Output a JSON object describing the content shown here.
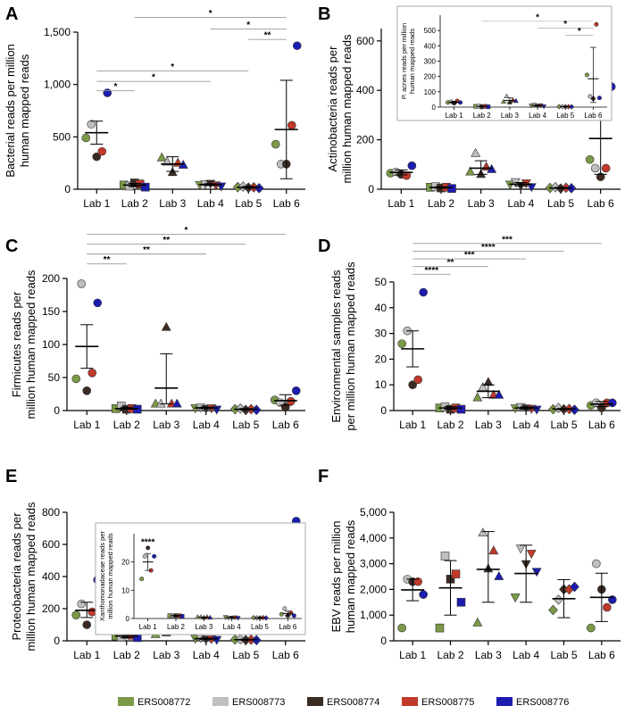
{
  "colors": {
    "ERS008772": "#7b9a47",
    "ERS008773": "#bfbfbf",
    "ERS008774": "#3a2a22",
    "ERS008775": "#c0392b",
    "ERS008776": "#1c1cb0"
  },
  "marker_shapes": [
    "circle",
    "square",
    "triangle-up",
    "triangle-down",
    "diamond",
    "circle"
  ],
  "legend": {
    "items": [
      {
        "name": "ERS008772",
        "color": "#7b9a47"
      },
      {
        "name": "ERS008773",
        "color": "#bfbfbf"
      },
      {
        "name": "ERS008774",
        "color": "#3a2a22"
      },
      {
        "name": "ERS008775",
        "color": "#c0392b"
      },
      {
        "name": "ERS008776",
        "color": "#1c1cb0"
      }
    ]
  },
  "chart_data": [
    {
      "type": "scatter",
      "panel": "A",
      "ylabel": [
        "Bacterial reads per million",
        "human mapped reads"
      ],
      "categories": [
        "Lab 1",
        "Lab 2",
        "Lab 3",
        "Lab 4",
        "Lab 5",
        "Lab 6"
      ],
      "ylim": [
        0,
        1500
      ],
      "yticks": [
        0,
        500,
        1000,
        1500
      ],
      "yticklabels": [
        "0",
        "500",
        "1,000",
        "1,500"
      ],
      "series": [
        {
          "color": "ERS008772",
          "values": [
            490,
            40,
            300,
            45,
            20,
            430
          ]
        },
        {
          "color": "ERS008773",
          "values": [
            620,
            30,
            260,
            50,
            25,
            240
          ]
        },
        {
          "color": "ERS008774",
          "values": [
            310,
            60,
            160,
            55,
            15,
            240
          ]
        },
        {
          "color": "ERS008775",
          "values": [
            360,
            50,
            250,
            40,
            18,
            610
          ]
        },
        {
          "color": "ERS008776",
          "values": [
            920,
            20,
            230,
            30,
            10,
            1370
          ]
        }
      ],
      "mean": [
        540,
        40,
        240,
        44,
        18,
        570
      ],
      "sem_low": [
        430,
        25,
        170,
        35,
        10,
        100
      ],
      "sem_high": [
        650,
        55,
        310,
        53,
        26,
        1040
      ],
      "sig_bars": [
        {
          "from": 0,
          "to": 1,
          "y": 940,
          "label": "*"
        },
        {
          "from": 0,
          "to": 3,
          "y": 1030,
          "label": "*"
        },
        {
          "from": 0,
          "to": 4,
          "y": 1130,
          "label": "*"
        },
        {
          "from": 1,
          "to": 5,
          "y": 1640,
          "label": "*"
        },
        {
          "from": 3,
          "to": 5,
          "y": 1530,
          "label": "*"
        },
        {
          "from": 4,
          "to": 5,
          "y": 1430,
          "label": "**"
        }
      ]
    },
    {
      "type": "scatter",
      "panel": "B",
      "ylabel": [
        "Actinobacteria reads per",
        "million human mapped reads"
      ],
      "categories": [
        "Lab 1",
        "Lab 2",
        "Lab 3",
        "Lab 4",
        "Lab 5",
        "Lab 6"
      ],
      "ylim": [
        0,
        650
      ],
      "yticks": [
        0,
        200,
        400,
        600
      ],
      "yticklabels": [
        "0",
        "200",
        "400",
        "600"
      ],
      "series": [
        {
          "color": "ERS008772",
          "values": [
            65,
            8,
            70,
            20,
            5,
            120
          ]
        },
        {
          "color": "ERS008773",
          "values": [
            70,
            10,
            145,
            30,
            8,
            85
          ]
        },
        {
          "color": "ERS008774",
          "values": [
            60,
            5,
            60,
            15,
            3,
            50
          ]
        },
        {
          "color": "ERS008775",
          "values": [
            55,
            8,
            90,
            25,
            6,
            85
          ]
        },
        {
          "color": "ERS008776",
          "values": [
            95,
            3,
            80,
            10,
            4,
            415
          ]
        }
      ],
      "mean": [
        68,
        7,
        85,
        20,
        5,
        205
      ],
      "sem_low": [
        58,
        4,
        60,
        13,
        3,
        60
      ],
      "sem_high": [
        78,
        10,
        115,
        27,
        7,
        340
      ],
      "inset": {
        "ylabel": [
          "P. acnes reads per million",
          "human mapped reads"
        ],
        "categories": [
          "Lab 1",
          "Lab 2",
          "Lab 3",
          "Lab 4",
          "Lab 5",
          "Lab 6"
        ],
        "ylim": [
          0,
          600
        ],
        "yticks": [
          0,
          100,
          200,
          300,
          400,
          500
        ],
        "yticklabels": [
          "0",
          "100",
          "200",
          "300",
          "400",
          "500"
        ],
        "series": [
          {
            "color": "ERS008772",
            "values": [
              30,
              5,
              35,
              10,
              3,
              210
            ]
          },
          {
            "color": "ERS008773",
            "values": [
              35,
              6,
              70,
              15,
              4,
              70
            ]
          },
          {
            "color": "ERS008774",
            "values": [
              25,
              3,
              30,
              8,
              2,
              55
            ]
          },
          {
            "color": "ERS008775",
            "values": [
              40,
              5,
              45,
              12,
              3,
              540
            ]
          },
          {
            "color": "ERS008776",
            "values": [
              30,
              2,
              40,
              5,
              2,
              60
            ]
          }
        ],
        "mean": [
          32,
          4,
          44,
          10,
          3,
          185
        ],
        "sem_low": [
          26,
          3,
          30,
          6,
          2,
          30
        ],
        "sem_high": [
          38,
          6,
          60,
          14,
          4,
          390
        ],
        "sig_bars": [
          {
            "from": 1,
            "to": 5,
            "y": 560,
            "label": "*"
          },
          {
            "from": 3,
            "to": 5,
            "y": 515,
            "label": "*"
          },
          {
            "from": 4,
            "to": 5,
            "y": 470,
            "label": "*"
          }
        ]
      }
    },
    {
      "type": "scatter",
      "panel": "C",
      "ylabel": [
        "Firmicutes reads per",
        "million human mapped reads"
      ],
      "categories": [
        "Lab 1",
        "Lab 2",
        "Lab 3",
        "Lab 4",
        "Lab 5",
        "Lab 6"
      ],
      "ylim": [
        0,
        200
      ],
      "yticks": [
        0,
        50,
        100,
        150,
        200
      ],
      "yticklabels": [
        "0",
        "50",
        "100",
        "150",
        "200"
      ],
      "series": [
        {
          "color": "ERS008772",
          "values": [
            48,
            3,
            10,
            4,
            2,
            16
          ]
        },
        {
          "color": "ERS008773",
          "values": [
            192,
            7,
            10,
            5,
            3,
            12
          ]
        },
        {
          "color": "ERS008774",
          "values": [
            30,
            2,
            126,
            3,
            1,
            5
          ]
        },
        {
          "color": "ERS008775",
          "values": [
            57,
            3,
            10,
            4,
            2,
            14
          ]
        },
        {
          "color": "ERS008776",
          "values": [
            163,
            2,
            10,
            2,
            1,
            30
          ]
        }
      ],
      "mean": [
        97,
        3,
        34,
        4,
        2,
        15
      ],
      "sem_low": [
        64,
        2,
        10,
        3,
        1,
        8
      ],
      "sem_high": [
        130,
        5,
        86,
        5,
        3,
        24
      ],
      "sig_bars": [
        {
          "from": 0,
          "to": 1,
          "y": 222,
          "label": "**"
        },
        {
          "from": 0,
          "to": 3,
          "y": 237,
          "label": "**"
        },
        {
          "from": 0,
          "to": 4,
          "y": 252,
          "label": "**"
        },
        {
          "from": 0,
          "to": 5,
          "y": 267,
          "label": "*"
        }
      ]
    },
    {
      "type": "scatter",
      "panel": "D",
      "ylabel": [
        "Environmental samples reads",
        "per million human mapped reads"
      ],
      "categories": [
        "Lab 1",
        "Lab 2",
        "Lab 3",
        "Lab 4",
        "Lab 5",
        "Lab 6"
      ],
      "ylim": [
        0,
        50
      ],
      "yticks": [
        0,
        10,
        20,
        30,
        40,
        50
      ],
      "yticklabels": [
        "0",
        "10",
        "20",
        "30",
        "40",
        "50"
      ],
      "series": [
        {
          "color": "ERS008772",
          "values": [
            26,
            1,
            5,
            1,
            0.5,
            2
          ]
        },
        {
          "color": "ERS008773",
          "values": [
            31,
            1.5,
            9,
            1.5,
            1,
            3
          ]
        },
        {
          "color": "ERS008774",
          "values": [
            10,
            0.5,
            11,
            1,
            0.5,
            1
          ]
        },
        {
          "color": "ERS008775",
          "values": [
            12,
            1,
            6,
            0.8,
            0.6,
            3
          ]
        },
        {
          "color": "ERS008776",
          "values": [
            46,
            0.5,
            6,
            0.5,
            0.3,
            3
          ]
        }
      ],
      "mean": [
        24,
        1,
        7.5,
        1,
        0.6,
        2.5
      ],
      "sem_low": [
        17,
        0.5,
        5,
        0.6,
        0.4,
        1.5
      ],
      "sem_high": [
        31,
        1.5,
        10,
        1.4,
        0.8,
        3.5
      ],
      "sig_bars": [
        {
          "from": 0,
          "to": 1,
          "y": 53,
          "label": "****"
        },
        {
          "from": 0,
          "to": 2,
          "y": 56,
          "label": "**"
        },
        {
          "from": 0,
          "to": 3,
          "y": 59,
          "label": "***"
        },
        {
          "from": 0,
          "to": 4,
          "y": 62,
          "label": "****"
        },
        {
          "from": 0,
          "to": 5,
          "y": 65,
          "label": "***"
        }
      ]
    },
    {
      "type": "scatter",
      "panel": "E",
      "ylabel": [
        "Proteobacteria reads per",
        "million human mapped reads"
      ],
      "categories": [
        "Lab 1",
        "Lab 2",
        "Lab 3",
        "Lab 4",
        "Lab 5",
        "Lab 6"
      ],
      "ylim": [
        0,
        800
      ],
      "yticks": [
        0,
        200,
        400,
        600,
        800
      ],
      "yticklabels": [
        "0",
        "200",
        "400",
        "600",
        "800"
      ],
      "series": [
        {
          "color": "ERS008772",
          "values": [
            160,
            30,
            40,
            15,
            8,
            180
          ]
        },
        {
          "color": "ERS008773",
          "values": [
            230,
            25,
            90,
            20,
            10,
            180
          ]
        },
        {
          "color": "ERS008774",
          "values": [
            100,
            40,
            50,
            10,
            5,
            410
          ]
        },
        {
          "color": "ERS008775",
          "values": [
            180,
            35,
            60,
            12,
            7,
            480
          ]
        },
        {
          "color": "ERS008776",
          "values": [
            380,
            20,
            70,
            8,
            4,
            745
          ]
        }
      ],
      "mean": [
        190,
        30,
        65,
        13,
        7,
        330
      ],
      "sem_low": [
        145,
        20,
        45,
        9,
        4,
        50
      ],
      "sem_high": [
        240,
        40,
        110,
        17,
        10,
        610
      ],
      "inset": {
        "ylabel": [
          "Xanthomonadaceae reads per",
          "million human mapped reads"
        ],
        "categories": [
          "Lab 1",
          "Lab 2",
          "Lab 3",
          "Lab 4",
          "Lab 5",
          "Lab 6"
        ],
        "ylim": [
          0,
          30
        ],
        "yticks": [
          0,
          10,
          20
        ],
        "yticklabels": [
          "0",
          "10",
          "20"
        ],
        "series": [
          {
            "color": "ERS008772",
            "values": [
              14,
              1,
              0.5,
              0.5,
              0.3,
              1.5
            ]
          },
          {
            "color": "ERS008773",
            "values": [
              22,
              1,
              0.5,
              0.3,
              0.2,
              3.5
            ]
          },
          {
            "color": "ERS008774",
            "values": [
              25,
              1,
              0.3,
              0.3,
              0.2,
              1
            ]
          },
          {
            "color": "ERS008775",
            "values": [
              17,
              1,
              0.5,
              0.4,
              0.3,
              2
            ]
          },
          {
            "color": "ERS008776",
            "values": [
              22,
              0.8,
              0.3,
              0.2,
              0.2,
              1
            ]
          }
        ],
        "mean": [
          20,
          1,
          0.4,
          0.3,
          0.2,
          1.8
        ],
        "sem_low": [
          17,
          0.8,
          0.3,
          0.2,
          0.2,
          1
        ],
        "sem_high": [
          23,
          1.2,
          0.5,
          0.4,
          0.3,
          2.6
        ],
        "annotation": {
          "cat": 0,
          "y": 26,
          "label": "****"
        }
      }
    },
    {
      "type": "scatter",
      "panel": "F",
      "ylabel": [
        "EBV reads per million",
        "human mapped reads"
      ],
      "categories": [
        "Lab 1",
        "Lab 2",
        "Lab 3",
        "Lab 4",
        "Lab 5",
        "Lab 6"
      ],
      "ylim": [
        0,
        5000
      ],
      "yticks": [
        0,
        1000,
        2000,
        3000,
        4000,
        5000
      ],
      "yticklabels": [
        "0",
        "1,000",
        "2,000",
        "3,000",
        "4,000",
        "5,000"
      ],
      "series": [
        {
          "color": "ERS008772",
          "values": [
            500,
            500,
            700,
            1700,
            1200,
            500
          ]
        },
        {
          "color": "ERS008773",
          "values": [
            2400,
            3300,
            4200,
            3600,
            1600,
            3000
          ]
        },
        {
          "color": "ERS008774",
          "values": [
            2300,
            2400,
            2800,
            3000,
            2000,
            2000
          ]
        },
        {
          "color": "ERS008775",
          "values": [
            2300,
            2600,
            3500,
            3400,
            2000,
            1300
          ]
        },
        {
          "color": "ERS008776",
          "values": [
            1800,
            1500,
            2500,
            2700,
            2100,
            1600
          ]
        }
      ],
      "mean": [
        1980,
        2060,
        2780,
        2620,
        1640,
        1690
      ],
      "sem_low": [
        1560,
        1000,
        1500,
        1500,
        900,
        750
      ],
      "sem_high": [
        2400,
        3120,
        4250,
        3720,
        2380,
        2630
      ]
    }
  ]
}
